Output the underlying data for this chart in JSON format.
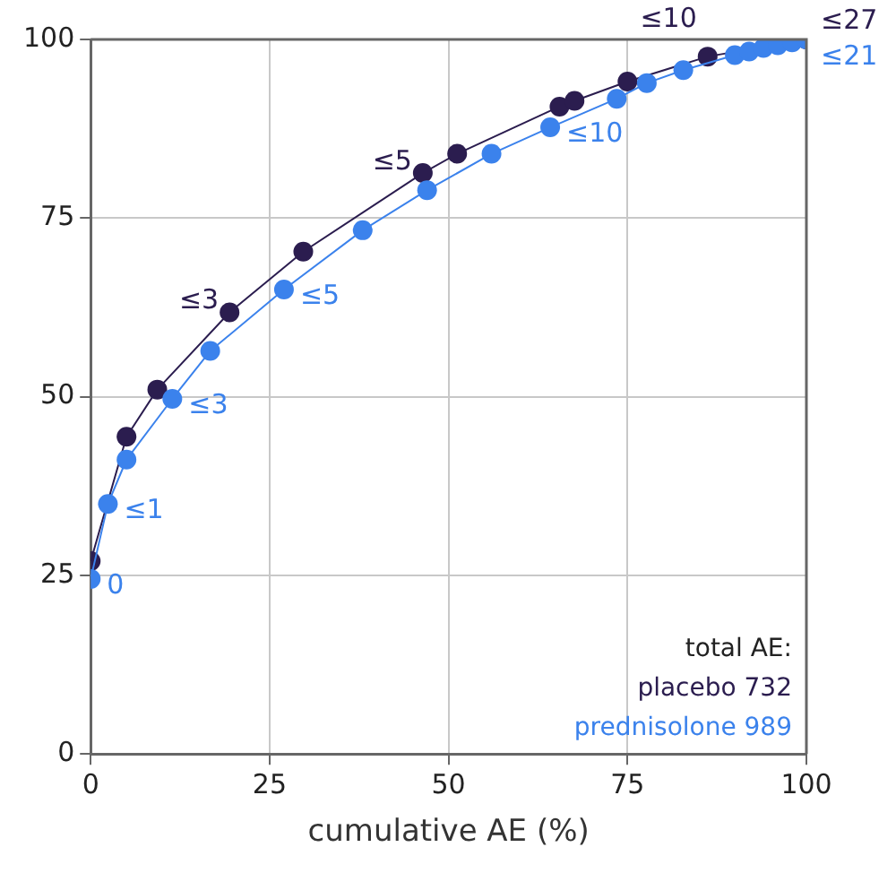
{
  "chart_data": {
    "type": "line",
    "xlabel": "cumulative AE (%)",
    "xlim": [
      0,
      100
    ],
    "ylim": [
      0,
      100
    ],
    "xticks": [
      0,
      25,
      50,
      75,
      100
    ],
    "yticks": [
      0,
      25,
      50,
      75,
      100
    ],
    "grid": true,
    "legend": false,
    "marker": "circle",
    "line_style": "solid",
    "series": [
      {
        "color": "#2b1d4f",
        "x": [
          0,
          5,
          9.3,
          19.4,
          29.7,
          46.4,
          51.2,
          65.5,
          67.6,
          75,
          86.2,
          100
        ],
        "values": [
          27,
          44.4,
          51,
          61.8,
          70.3,
          81.3,
          84,
          90.6,
          91.4,
          94.1,
          97.6,
          100
        ]
      },
      {
        "color": "#3b82ec",
        "x": [
          0,
          2.4,
          5,
          11.4,
          16.7,
          27,
          38,
          47,
          56,
          64.2,
          73.5,
          77.7,
          82.8,
          90,
          92,
          94,
          96,
          98,
          100
        ],
        "values": [
          24.5,
          35,
          41.2,
          49.7,
          56.4,
          65,
          73.3,
          78.9,
          84,
          87.7,
          91.7,
          93.9,
          95.7,
          97.8,
          98.3,
          98.8,
          99.2,
          99.6,
          100
        ]
      }
    ],
    "annotations": [
      {
        "text": "≤3",
        "x": 19.4,
        "y": 61.8
      },
      {
        "text": "≤5",
        "x": 46.4,
        "y": 81.3
      },
      {
        "text": "≤10",
        "x": 86.2,
        "y": 97.6
      },
      {
        "text": "≤27",
        "x": 100,
        "y": 100
      },
      {
        "text": "0",
        "x": 0,
        "y": 24.5
      },
      {
        "text": "≤1",
        "x": 2.4,
        "y": 35
      },
      {
        "text": "≤3",
        "x": 11.4,
        "y": 49.7
      },
      {
        "text": "≤5",
        "x": 27,
        "y": 65
      },
      {
        "text": "≤10",
        "x": 64.2,
        "y": 87.7
      },
      {
        "text": "≤21",
        "x": 100,
        "y": 100
      },
      "total AE:",
      "placebo 732",
      "prednisolone 989"
    ]
  }
}
